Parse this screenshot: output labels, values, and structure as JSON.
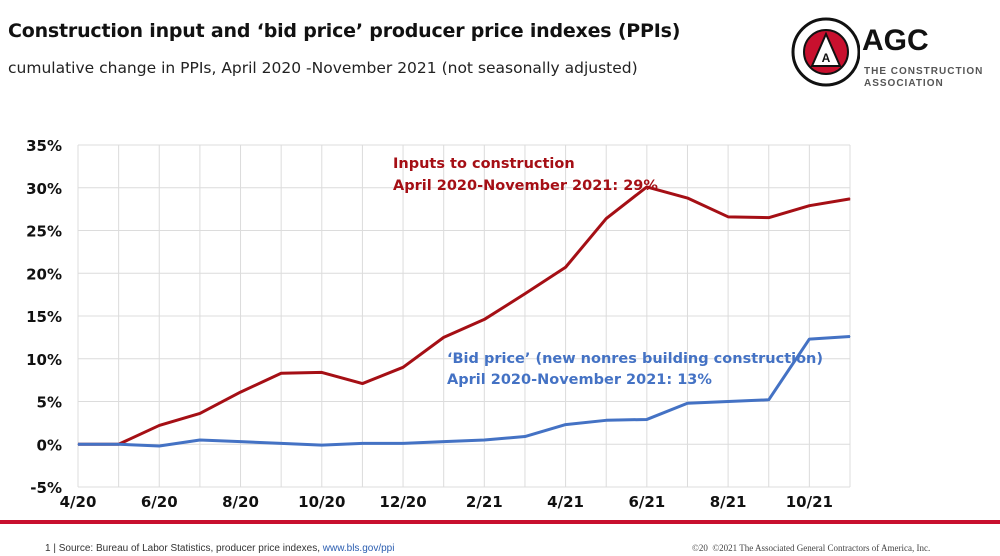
{
  "header": {
    "title": "Construction input and ‘bid price’ producer price indexes (PPIs)",
    "subtitle": "cumulative change in PPIs, April 2020 -November 2021 (not seasonally adjusted)"
  },
  "logo": {
    "name": "AGC",
    "tagline_1": "THE CONSTRUCTION",
    "tagline_2": "ASSOCIATION",
    "seal_text": "ASSOCIATED GENERAL CONTRACTORS OF AMERICA",
    "color": "#c8102e"
  },
  "footer": {
    "source": "1 | Source: Bureau of Labor Statistics, producer price indexes, ",
    "link": "www.bls.gov/ppi",
    "copyright": "©20  ©2021 The Associated General Contractors of America, Inc."
  },
  "chart_data": {
    "type": "line",
    "title": "",
    "xlabel": "",
    "ylabel": "",
    "x": [
      "4/20",
      "5/20",
      "6/20",
      "7/20",
      "8/20",
      "9/20",
      "10/20",
      "11/20",
      "12/20",
      "1/21",
      "2/21",
      "3/21",
      "4/21",
      "5/21",
      "6/21",
      "7/21",
      "8/21",
      "9/21",
      "10/21",
      "11/21"
    ],
    "x_tick_labels": [
      "4/20",
      "6/20",
      "8/20",
      "10/20",
      "12/20",
      "2/21",
      "4/21",
      "6/21",
      "8/21",
      "10/21"
    ],
    "ylim": [
      -5,
      35
    ],
    "y_ticks": [
      -5,
      0,
      5,
      10,
      15,
      20,
      25,
      30,
      35
    ],
    "y_tick_labels": [
      "-5%",
      "0%",
      "5%",
      "10%",
      "15%",
      "20%",
      "25%",
      "30%",
      "35%"
    ],
    "grid": true,
    "series": [
      {
        "color": "#a50f15",
        "annotation": [
          "Inputs to construction",
          "April 2020-November 2021:  29%"
        ],
        "values": [
          0,
          0,
          2.2,
          3.6,
          6.1,
          8.3,
          8.4,
          7.1,
          9.0,
          12.5,
          14.6,
          17.6,
          20.7,
          26.4,
          30.1,
          28.8,
          26.6,
          26.5,
          27.9,
          28.7
        ]
      },
      {
        "color": "#4472c4",
        "annotation": [
          "‘Bid price’ (new nonres building  construction)",
          "April 2020-November 2021: 13%"
        ],
        "values": [
          0,
          0,
          -0.2,
          0.5,
          0.3,
          0.1,
          -0.1,
          0.1,
          0.1,
          0.3,
          0.5,
          0.9,
          2.3,
          2.8,
          2.9,
          4.8,
          5.0,
          5.2,
          12.3,
          12.6
        ]
      }
    ]
  }
}
